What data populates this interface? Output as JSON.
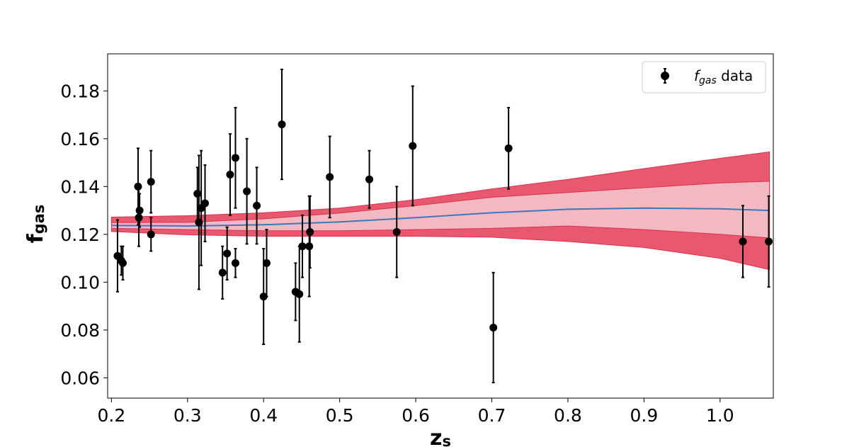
{
  "chart_data": {
    "type": "scatter",
    "xlabel": "z",
    "xlabel_sub": "s",
    "ylabel": "f",
    "ylabel_sub": "gas",
    "xlim": [
      0.195,
      1.07
    ],
    "ylim": [
      0.0515,
      0.1955
    ],
    "xticks": [
      0.2,
      0.3,
      0.4,
      0.5,
      0.6,
      0.7,
      0.8,
      0.9,
      1.0
    ],
    "xtick_labels": [
      "0.2",
      "0.3",
      "0.4",
      "0.5",
      "0.6",
      "0.7",
      "0.8",
      "0.9",
      "1.0"
    ],
    "yticks": [
      0.06,
      0.08,
      0.1,
      0.12,
      0.14,
      0.16,
      0.18
    ],
    "ytick_labels": [
      "0.06",
      "0.08",
      "0.10",
      "0.12",
      "0.14",
      "0.16",
      "0.18"
    ],
    "grid": false,
    "legend": {
      "placement": "top-right",
      "entries": [
        {
          "label_italic": "f",
          "label_sub": "gas",
          "label_rest": " data",
          "marker": "errorbar-dot"
        }
      ]
    },
    "colors": {
      "points": "#000000",
      "mean_line": "#3a78b8",
      "band_outer": "#e8596f",
      "band_outer_edge": "#d9304f",
      "band_inner": "#f3b9c3"
    },
    "data_points": [
      {
        "z": 0.208,
        "f": 0.111,
        "err": 0.015
      },
      {
        "z": 0.213,
        "f": 0.109,
        "err": 0.006
      },
      {
        "z": 0.215,
        "f": 0.108,
        "err": 0.007
      },
      {
        "z": 0.235,
        "f": 0.14,
        "err": 0.016
      },
      {
        "z": 0.236,
        "f": 0.127,
        "err": 0.012
      },
      {
        "z": 0.237,
        "f": 0.13,
        "err": 0.007
      },
      {
        "z": 0.252,
        "f": 0.142,
        "err": 0.013
      },
      {
        "z": 0.252,
        "f": 0.12,
        "err": 0.007
      },
      {
        "z": 0.313,
        "f": 0.137,
        "err": 0.011
      },
      {
        "z": 0.315,
        "f": 0.125,
        "err": 0.028
      },
      {
        "z": 0.318,
        "f": 0.131,
        "err": 0.024
      },
      {
        "z": 0.323,
        "f": 0.133,
        "err": 0.016
      },
      {
        "z": 0.346,
        "f": 0.104,
        "err": 0.011
      },
      {
        "z": 0.352,
        "f": 0.112,
        "err": 0.011
      },
      {
        "z": 0.356,
        "f": 0.145,
        "err": 0.017
      },
      {
        "z": 0.363,
        "f": 0.152,
        "err": 0.021
      },
      {
        "z": 0.363,
        "f": 0.108,
        "err": 0.006
      },
      {
        "z": 0.378,
        "f": 0.138,
        "err": 0.022
      },
      {
        "z": 0.391,
        "f": 0.132,
        "err": 0.016
      },
      {
        "z": 0.4,
        "f": 0.094,
        "err": 0.02
      },
      {
        "z": 0.404,
        "f": 0.108,
        "err": 0.014
      },
      {
        "z": 0.424,
        "f": 0.166,
        "err": 0.023
      },
      {
        "z": 0.442,
        "f": 0.096,
        "err": 0.012
      },
      {
        "z": 0.447,
        "f": 0.095,
        "err": 0.02
      },
      {
        "z": 0.451,
        "f": 0.115,
        "err": 0.013
      },
      {
        "z": 0.46,
        "f": 0.115,
        "err": 0.021
      },
      {
        "z": 0.461,
        "f": 0.121,
        "err": 0.015
      },
      {
        "z": 0.487,
        "f": 0.144,
        "err": 0.017
      },
      {
        "z": 0.539,
        "f": 0.143,
        "err": 0.012
      },
      {
        "z": 0.575,
        "f": 0.121,
        "err": 0.019
      },
      {
        "z": 0.596,
        "f": 0.157,
        "err": 0.025
      },
      {
        "z": 0.702,
        "f": 0.081,
        "err": 0.023
      },
      {
        "z": 0.722,
        "f": 0.156,
        "err": 0.017
      },
      {
        "z": 1.03,
        "f": 0.117,
        "err": 0.015
      },
      {
        "z": 1.064,
        "f": 0.117,
        "err": 0.019
      }
    ],
    "reconstruction": {
      "z": [
        0.2,
        0.3,
        0.4,
        0.5,
        0.6,
        0.7,
        0.8,
        0.9,
        1.0,
        1.065
      ],
      "mean": [
        0.1237,
        0.1235,
        0.124,
        0.1252,
        0.127,
        0.129,
        0.1305,
        0.131,
        0.1307,
        0.13
      ],
      "lo1": [
        0.1225,
        0.122,
        0.1215,
        0.1215,
        0.122,
        0.1225,
        0.1235,
        0.122,
        0.12,
        0.1185
      ],
      "hi1": [
        0.1249,
        0.125,
        0.1265,
        0.1289,
        0.132,
        0.1355,
        0.1375,
        0.1395,
        0.1415,
        0.1422
      ],
      "lo2": [
        0.1212,
        0.1198,
        0.1192,
        0.1192,
        0.1192,
        0.1188,
        0.117,
        0.1145,
        0.11,
        0.1052
      ],
      "hi2": [
        0.1272,
        0.1278,
        0.129,
        0.131,
        0.1345,
        0.139,
        0.143,
        0.1475,
        0.1518,
        0.1545
      ]
    }
  }
}
